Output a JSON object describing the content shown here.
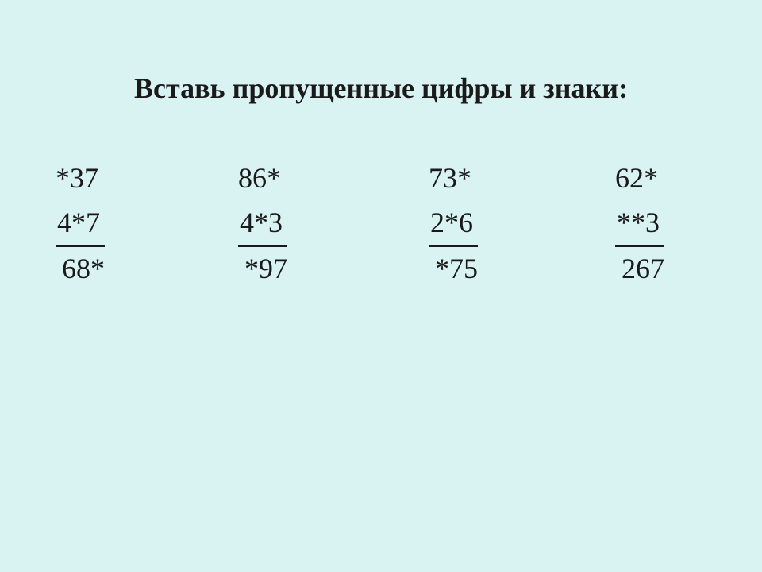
{
  "background_color": "#d9f2f2",
  "text_color": "#1a1a1a",
  "font_family": "Times New Roman",
  "title_fontsize": 36,
  "title_fontweight": "bold",
  "body_fontsize": 36,
  "title": "Вставь пропущенные цифры и знаки:",
  "problems": [
    {
      "line1": "*37",
      "line2": " 4*7",
      "line3": " 68*"
    },
    {
      "line1": "86*",
      "line2": "4*3",
      "line3": "*97"
    },
    {
      "line1": " 73*",
      "line2": " 2*6",
      "line3": "*75"
    },
    {
      "line1": "62*",
      "line2": "**3",
      "line3": "267"
    }
  ]
}
